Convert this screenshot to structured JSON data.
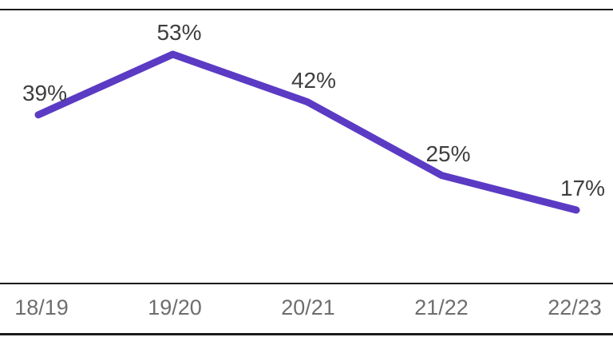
{
  "chart_data": {
    "type": "line",
    "title": "",
    "categories": [
      "18/19",
      "19/20",
      "20/21",
      "21/22",
      "22/23"
    ],
    "values": [
      39,
      53,
      42,
      25,
      17
    ],
    "point_labels": [
      "39%",
      "53%",
      "42%",
      "25%",
      "17%"
    ],
    "unit": "%",
    "xlabel": "",
    "ylabel": "",
    "legend_position": "none",
    "grid": false,
    "y_axis_visible": false,
    "colors": {
      "line": "#5b3bc4",
      "point_label_text": "#3e3e3e",
      "x_axis_label_text": "#6e6e6e",
      "rule": "#1b1b1b",
      "background": "#ffffff"
    }
  }
}
